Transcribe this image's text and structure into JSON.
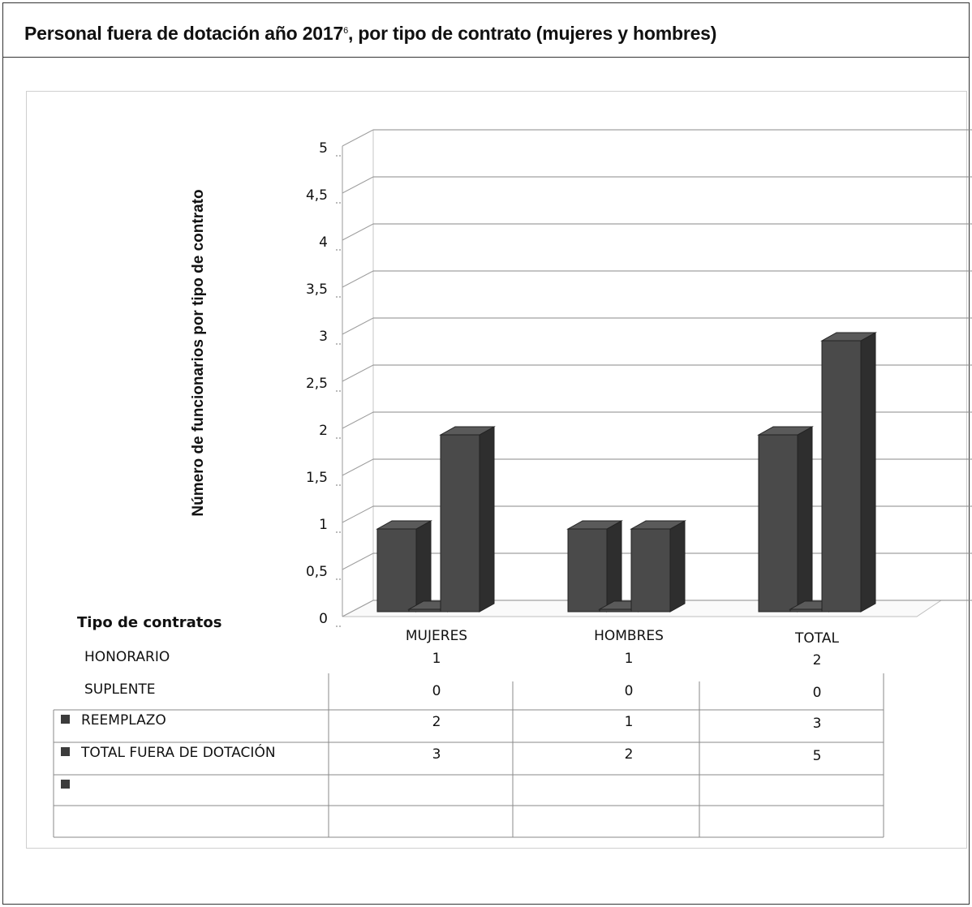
{
  "header": {
    "title": "Personal fuera de dotación año 2017",
    "footnote_mark": "6",
    "title_suffix": ", por tipo de contrato (mujeres y hombres)"
  },
  "chart_data": {
    "type": "bar",
    "ylabel": "Número de funcionarios por tipo de contrato",
    "table_header": "Tipo de contratos",
    "categories": [
      "MUJERES",
      "HOMBRES",
      "TOTAL"
    ],
    "yticks": [
      "0",
      "0,5",
      "1",
      "1,5",
      "2",
      "2,5",
      "3",
      "3,5",
      "4",
      "4,5",
      "5"
    ],
    "ylim": [
      0,
      5
    ],
    "grid": true,
    "series": [
      {
        "name": "HONORARIO",
        "values": [
          1,
          1,
          2
        ]
      },
      {
        "name": "SUPLENTE",
        "values": [
          0,
          0,
          0
        ]
      },
      {
        "name": "REEMPLAZO",
        "values": [
          2,
          1,
          3
        ]
      },
      {
        "name": "TOTAL FUERA DE DOTACIÓN",
        "values": [
          3,
          2,
          5
        ]
      }
    ],
    "plotted_series": [
      "HONORARIO",
      "SUPLENTE",
      "REEMPLAZO"
    ],
    "bar_color": "#4a4a4a"
  }
}
